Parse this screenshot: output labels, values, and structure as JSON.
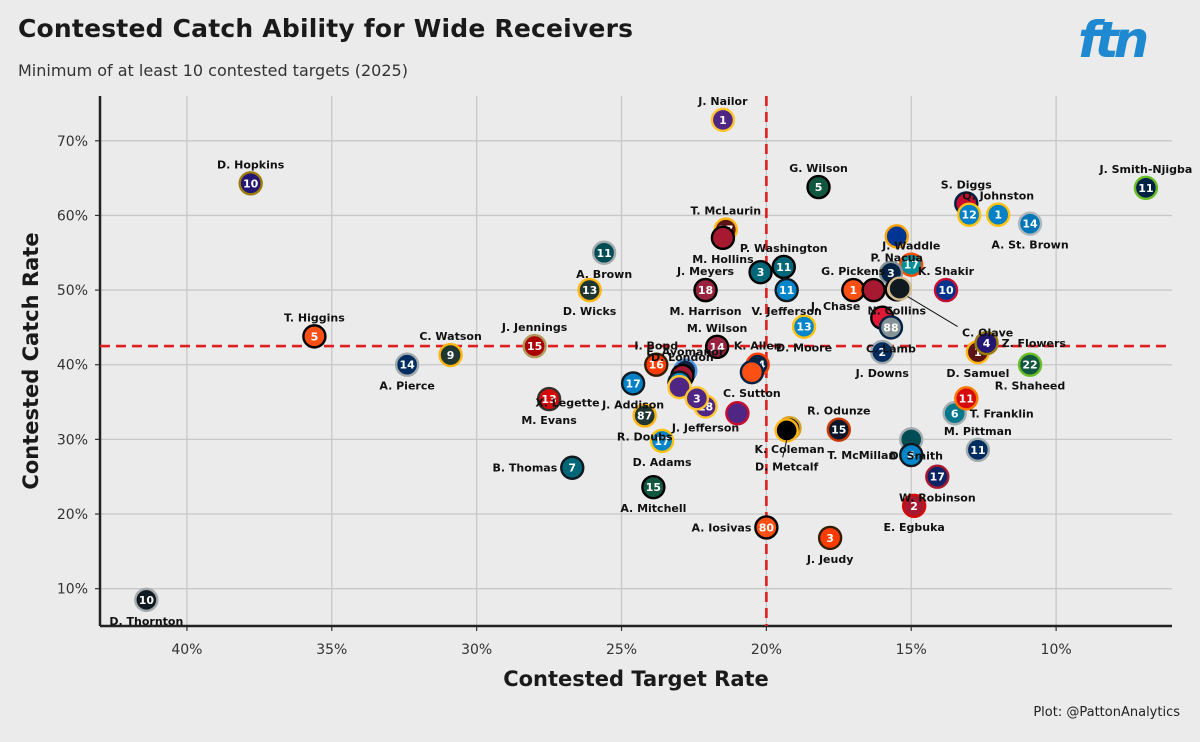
{
  "header": {
    "title": "Contested Catch Ability for Wide Receivers",
    "subtitle": "Minimum of at least 10 contested targets (2025)",
    "logo": "ftn",
    "caption": "Plot: @PattonAnalytics"
  },
  "chart_data": {
    "type": "scatter",
    "title": "Contested Catch Ability for Wide Receivers",
    "subtitle": "Minimum of at least 10 contested targets (2025)",
    "xlabel": "Contested Target Rate",
    "ylabel": "Contested Catch Rate",
    "x_reversed": true,
    "xlim": [
      43.0,
      6.0
    ],
    "ylim": [
      5.0,
      76.0
    ],
    "xticks": [
      40,
      35,
      30,
      25,
      20,
      15,
      10
    ],
    "xtick_labels": [
      "40%",
      "35%",
      "30%",
      "25%",
      "20%",
      "15%",
      "10%"
    ],
    "yticks": [
      10,
      20,
      30,
      40,
      50,
      60,
      70
    ],
    "ytick_labels": [
      "10%",
      "20%",
      "30%",
      "40%",
      "50%",
      "60%",
      "70%"
    ],
    "reference_lines": {
      "x": 20.0,
      "y": 42.5
    },
    "points": [
      {
        "name": "J. Nailor",
        "num": "1",
        "x": 21.5,
        "y": 72.8,
        "fill": "#4f2683",
        "ring": "#ffc62f",
        "lp": "above"
      },
      {
        "name": "D. Hopkins",
        "num": "10",
        "x": 37.8,
        "y": 64.3,
        "fill": "#241773",
        "ring": "#9e7c0c",
        "lp": "above"
      },
      {
        "name": "G. Wilson",
        "num": "5",
        "x": 18.2,
        "y": 63.8,
        "fill": "#125740",
        "ring": "#000000",
        "lp": "above"
      },
      {
        "name": "S. Diggs",
        "num": "",
        "x": 13.1,
        "y": 61.6,
        "fill": "#c60c30",
        "ring": "#002244",
        "lp": "above"
      },
      {
        "name": "J. Smith-Njigba",
        "num": "11",
        "x": 6.9,
        "y": 63.7,
        "fill": "#002244",
        "ring": "#69be28",
        "lp": "above"
      },
      {
        "name": "Q. Johnston",
        "num": "1",
        "x": 12.0,
        "y": 60.1,
        "fill": "#0080c6",
        "ring": "#ffc20e",
        "lp": "above"
      },
      {
        "name": "",
        "num": "12",
        "x": 13.0,
        "y": 60.1,
        "fill": "#0080c6",
        "ring": "#ffc20e",
        "lp": "none"
      },
      {
        "name": "A. St. Brown",
        "num": "14",
        "x": 10.9,
        "y": 58.9,
        "fill": "#0076b6",
        "ring": "#b0b7bc",
        "lp": "below"
      },
      {
        "name": "T. McLaurin",
        "num": "17",
        "x": 21.4,
        "y": 58.1,
        "fill": "#5a1414",
        "ring": "#ffb612",
        "lp": "above"
      },
      {
        "name": "M. Hollins",
        "num": "",
        "x": 21.5,
        "y": 57.0,
        "fill": "#a71930",
        "ring": "#000000",
        "lp": "below"
      },
      {
        "name": "P. Nacua",
        "num": "",
        "x": 15.5,
        "y": 57.2,
        "fill": "#003594",
        "ring": "#ffa300",
        "lp": "below"
      },
      {
        "name": "A. Brown",
        "num": "11",
        "x": 25.6,
        "y": 55.0,
        "fill": "#004c54",
        "ring": "#a5acaf",
        "lp": "below"
      },
      {
        "name": "P. Washington",
        "num": "11",
        "x": 19.4,
        "y": 53.1,
        "fill": "#006778",
        "ring": "#000000",
        "lp": "above"
      },
      {
        "name": "",
        "num": "3",
        "x": 20.2,
        "y": 52.4,
        "fill": "#006778",
        "ring": "#000000",
        "lp": "none"
      },
      {
        "name": "J. Waddle",
        "num": "17",
        "x": 15.0,
        "y": 53.4,
        "fill": "#008e97",
        "ring": "#fc4c02",
        "lp": "above"
      },
      {
        "name": "",
        "num": "3",
        "x": 15.7,
        "y": 52.3,
        "fill": "#002244",
        "ring": "#869397",
        "lp": "none"
      },
      {
        "name": "D. Wicks",
        "num": "13",
        "x": 26.1,
        "y": 50.0,
        "fill": "#203731",
        "ring": "#ffb612",
        "lp": "below"
      },
      {
        "name": "J. Meyers",
        "num": "18",
        "x": 22.1,
        "y": 50.0,
        "fill": "#a5acaf",
        "ring": "#000000",
        "lp": "above"
      },
      {
        "name": "M. Harrison",
        "num": "18",
        "x": 22.1,
        "y": 50.0,
        "fill": "#97233f",
        "ring": "#000000",
        "lp": "below"
      },
      {
        "name": "V. Jefferson",
        "num": "11",
        "x": 19.3,
        "y": 50.0,
        "fill": "#0085ca",
        "ring": "#101820",
        "lp": "below"
      },
      {
        "name": "G. Pickens",
        "num": "1",
        "x": 17.0,
        "y": 50.0,
        "fill": "#fb4f14",
        "ring": "#000000",
        "lp": "above"
      },
      {
        "name": "N. Collins",
        "num": "12",
        "x": 15.5,
        "y": 50.1,
        "fill": "#d3bc8d",
        "ring": "#000000",
        "lp": "below"
      },
      {
        "name": "K. Shakir",
        "num": "10",
        "x": 13.8,
        "y": 50.0,
        "fill": "#00338d",
        "ring": "#c60c30",
        "lp": "above"
      },
      {
        "name": "J. Chase",
        "num": "",
        "x": 16.3,
        "y": 50.0,
        "fill": "#a71930",
        "ring": "#000000",
        "lp": "none"
      },
      {
        "name": "C. Olave",
        "num": "",
        "x": 15.4,
        "y": 50.2,
        "fill": "#101820",
        "ring": "#d3bc8d",
        "lp": "none"
      },
      {
        "name": "D. Moore",
        "num": "13",
        "x": 18.7,
        "y": 45.1,
        "fill": "#0085ca",
        "ring": "#ffc20e",
        "lp": "below"
      },
      {
        "name": "",
        "num": "",
        "x": 16.0,
        "y": 46.3,
        "fill": "#e31837",
        "ring": "#000000",
        "lp": "none"
      },
      {
        "name": "C. Lamb",
        "num": "88",
        "x": 15.7,
        "y": 45.0,
        "fill": "#869397",
        "ring": "#002244",
        "lp": "below"
      },
      {
        "name": "T. Higgins",
        "num": "5",
        "x": 35.6,
        "y": 43.8,
        "fill": "#fb4f14",
        "ring": "#000000",
        "lp": "above"
      },
      {
        "name": "C. Watson",
        "num": "9",
        "x": 30.9,
        "y": 41.3,
        "fill": "#203731",
        "ring": "#ffb612",
        "lp": "above"
      },
      {
        "name": "J. Jennings",
        "num": "15",
        "x": 28.0,
        "y": 42.5,
        "fill": "#aa0000",
        "ring": "#b3995d",
        "lp": "above"
      },
      {
        "name": "A. Pierce",
        "num": "14",
        "x": 32.4,
        "y": 40.0,
        "fill": "#002c5f",
        "ring": "#a2aaad",
        "lp": "below"
      },
      {
        "name": "M. Wilson",
        "num": "14",
        "x": 21.7,
        "y": 42.4,
        "fill": "#97233f",
        "ring": "#000000",
        "lp": "above"
      },
      {
        "name": "K. Allen",
        "num": "14",
        "x": 20.3,
        "y": 40.0,
        "fill": "#002244",
        "ring": "#ff3c00",
        "lp": "above"
      },
      {
        "name": "D. Samuel",
        "num": "1",
        "x": 12.7,
        "y": 41.7,
        "fill": "#5a1414",
        "ring": "#ffb612",
        "lp": "below"
      },
      {
        "name": "Z. Flowers",
        "num": "4",
        "x": 12.4,
        "y": 42.9,
        "fill": "#241773",
        "ring": "#9e7c0c",
        "lp": "right"
      },
      {
        "name": "R. Shaheed",
        "num": "22",
        "x": 10.9,
        "y": 40.0,
        "fill": "#125740",
        "ring": "#69be28",
        "lp": "below"
      },
      {
        "name": "J. Downs",
        "num": "2",
        "x": 16.0,
        "y": 41.7,
        "fill": "#002c5f",
        "ring": "#a2aaad",
        "lp": "below"
      },
      {
        "name": "I. Bond",
        "num": "16",
        "x": 23.8,
        "y": 40.0,
        "fill": "#ff3c00",
        "ring": "#311d00",
        "lp": "above"
      },
      {
        "name": "E. Ayomanor",
        "num": "",
        "x": 22.8,
        "y": 39.2,
        "fill": "#0c2340",
        "ring": "#4b92db",
        "lp": "above"
      },
      {
        "name": "D. London",
        "num": "5",
        "x": 22.9,
        "y": 38.5,
        "fill": "#a71930",
        "ring": "#000000",
        "lp": "above"
      },
      {
        "name": "C. Sutton",
        "num": "",
        "x": 20.5,
        "y": 39.0,
        "fill": "#fb4f14",
        "ring": "#002244",
        "lp": "below"
      },
      {
        "name": "X. Legette",
        "num": "",
        "x": 23.0,
        "y": 37.6,
        "fill": "#0085ca",
        "ring": "#101820",
        "lp": "none"
      },
      {
        "name": "J. Addison",
        "num": "17",
        "x": 24.6,
        "y": 37.5,
        "fill": "#0080c6",
        "ring": "#101820",
        "lp": "below"
      },
      {
        "name": "",
        "num": "",
        "x": 23.0,
        "y": 37.0,
        "fill": "#4f2683",
        "ring": "#ffc62f",
        "lp": "none"
      },
      {
        "name": "M. Evans",
        "num": "13",
        "x": 27.5,
        "y": 35.4,
        "fill": "#d50a0a",
        "ring": "#34302b",
        "lp": "below"
      },
      {
        "name": "J. Jefferson",
        "num": "18",
        "x": 22.1,
        "y": 34.4,
        "fill": "#4f2683",
        "ring": "#ffc62f",
        "lp": "below"
      },
      {
        "name": "",
        "num": "3",
        "x": 22.4,
        "y": 35.5,
        "fill": "#4f2683",
        "ring": "#ffc62f",
        "lp": "none"
      },
      {
        "name": "",
        "num": "",
        "x": 21.0,
        "y": 33.5,
        "fill": "#4f2683",
        "ring": "#c60c30",
        "lp": "none"
      },
      {
        "name": "R. Doubs",
        "num": "87",
        "x": 24.2,
        "y": 33.2,
        "fill": "#203731",
        "ring": "#ffb612",
        "lp": "below"
      },
      {
        "name": "K. Coleman",
        "num": "4",
        "x": 19.2,
        "y": 31.5,
        "fill": "#101820",
        "ring": "#d7a22a",
        "lp": "below"
      },
      {
        "name": "R. Odunze",
        "num": "15",
        "x": 17.5,
        "y": 31.3,
        "fill": "#0b162a",
        "ring": "#c83803",
        "lp": "above"
      },
      {
        "name": "D. Adams",
        "num": "17",
        "x": 23.6,
        "y": 29.8,
        "fill": "#0085ca",
        "ring": "#ffc20e",
        "lp": "below"
      },
      {
        "name": "T. Franklin",
        "num": "6",
        "x": 13.5,
        "y": 33.5,
        "fill": "#00778b",
        "ring": "#a5acaf",
        "lp": "right"
      },
      {
        "name": "",
        "num": "11",
        "x": 13.1,
        "y": 35.5,
        "fill": "#d50a0a",
        "ring": "#ff7900",
        "lp": "none"
      },
      {
        "name": "D. Smith",
        "num": "",
        "x": 15.0,
        "y": 30.0,
        "fill": "#004c54",
        "ring": "#a5acaf",
        "lp": "none"
      },
      {
        "name": "M. Pittman",
        "num": "11",
        "x": 12.7,
        "y": 28.6,
        "fill": "#002c5f",
        "ring": "#a2aaad",
        "lp": "above"
      },
      {
        "name": "T. McMillan",
        "num": "4",
        "x": 15.0,
        "y": 27.9,
        "fill": "#0085ca",
        "ring": "#101820",
        "lp": "left"
      },
      {
        "name": "D. Metcalf",
        "num": "",
        "x": 19.3,
        "y": 31.2,
        "fill": "#000000",
        "ring": "#ffb612",
        "lp": "none"
      },
      {
        "name": "B. Thomas",
        "num": "7",
        "x": 26.7,
        "y": 26.2,
        "fill": "#006778",
        "ring": "#101820",
        "lp": "left"
      },
      {
        "name": "W. Robinson",
        "num": "17",
        "x": 14.1,
        "y": 25.0,
        "fill": "#0b2265",
        "ring": "#a71930",
        "lp": "below"
      },
      {
        "name": "A. Mitchell",
        "num": "15",
        "x": 23.9,
        "y": 23.6,
        "fill": "#125740",
        "ring": "#000000",
        "lp": "below"
      },
      {
        "name": "E. Egbuka",
        "num": "2",
        "x": 14.9,
        "y": 21.1,
        "fill": "#a71930",
        "ring": "#d50a0a",
        "lp": "below"
      },
      {
        "name": "A. Iosivas",
        "num": "80",
        "x": 20.0,
        "y": 18.2,
        "fill": "#fb4f14",
        "ring": "#000000",
        "lp": "left"
      },
      {
        "name": "J. Jeudy",
        "num": "3",
        "x": 17.8,
        "y": 16.8,
        "fill": "#ff3c00",
        "ring": "#311d00",
        "lp": "below"
      },
      {
        "name": "D. Thornton",
        "num": "10",
        "x": 41.4,
        "y": 8.5,
        "fill": "#101820",
        "ring": "#a5acaf",
        "lp": "below"
      }
    ]
  }
}
